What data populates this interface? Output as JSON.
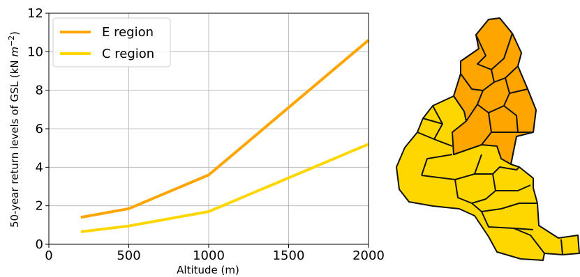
{
  "chart_data": {
    "type": "line",
    "title": "",
    "xlabel": "Altitude (m)",
    "ylabel_prefix": "50-year return levels of GSL (kN ",
    "ylabel_unit": "m",
    "ylabel_exp": "−2",
    "ylabel_suffix": ")",
    "xlim": [
      0,
      2000
    ],
    "ylim": [
      0,
      12
    ],
    "x_ticks": [
      0,
      500,
      1000,
      1500,
      2000
    ],
    "y_ticks": [
      0,
      2,
      4,
      6,
      8,
      10,
      12
    ],
    "grid": true,
    "legend_position": "top-left",
    "series": [
      {
        "name": "E region",
        "color": "#ffa500",
        "x": [
          200,
          500,
          1000,
          2000
        ],
        "y": [
          1.4,
          1.85,
          3.6,
          10.6
        ]
      },
      {
        "name": "C region",
        "color": "#ffd700",
        "x": [
          200,
          500,
          1000,
          2000
        ],
        "y": [
          0.65,
          0.95,
          1.7,
          5.2
        ]
      }
    ]
  },
  "map": {
    "colors": {
      "e_region": "#ffa500",
      "c_region": "#ffd700",
      "border": "#111111"
    }
  }
}
